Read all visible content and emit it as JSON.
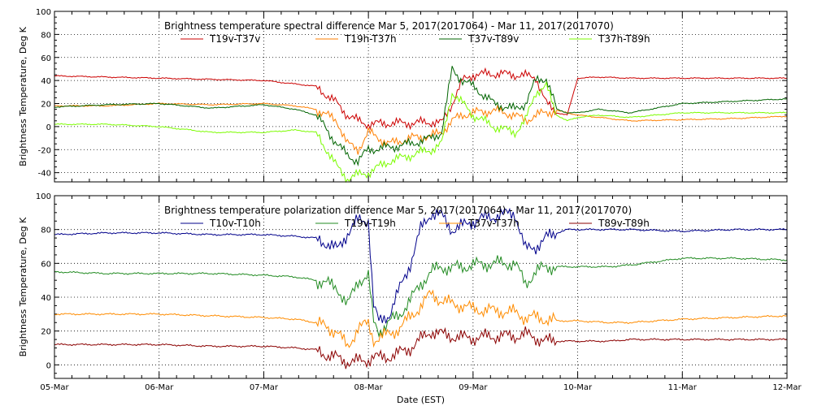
{
  "colors": {
    "background": "#ffffff",
    "axis": "#000000"
  },
  "chart_data": [
    {
      "type": "line",
      "title": "Brightness temperature spectral difference      Mar  5, 2017(2017064) - Mar 11, 2017(2017070)",
      "ylabel": "Brightness Temperature, Deg K",
      "xlabel": "",
      "ylim": [
        -48,
        100
      ],
      "yticks": [
        -40,
        -20,
        0,
        20,
        40,
        60,
        80,
        100
      ],
      "xlim": [
        0,
        7
      ],
      "xticks": [
        0,
        1,
        2,
        3,
        4,
        5,
        6,
        7
      ],
      "xticklabels": [],
      "grid": true,
      "legend_position": "top",
      "x": [
        0,
        0.5,
        1,
        1.5,
        2,
        2.3,
        2.5,
        2.7,
        2.8,
        2.9,
        3.0,
        3.2,
        3.4,
        3.6,
        3.7,
        3.8,
        3.9,
        4.0,
        4.2,
        4.4,
        4.5,
        4.6,
        4.7,
        4.8,
        4.9,
        5.0,
        5.2,
        5.5,
        6,
        6.5,
        7
      ],
      "series": [
        {
          "name": "T19v-T37v",
          "color": "#cc0000",
          "values": [
            44,
            43,
            42,
            41,
            40,
            37,
            35,
            20,
            10,
            5,
            2,
            3,
            3,
            4,
            3,
            20,
            40,
            45,
            46,
            45,
            44,
            43,
            20,
            12,
            10,
            42,
            43,
            42,
            42,
            42,
            42
          ]
        },
        {
          "name": "T19h-T37h",
          "color": "#ff7f00",
          "values": [
            18,
            18,
            20,
            19,
            20,
            18,
            15,
            5,
            -15,
            -20,
            -5,
            -15,
            -10,
            -8,
            -5,
            5,
            10,
            12,
            14,
            10,
            5,
            10,
            12,
            14,
            12,
            10,
            8,
            5,
            6,
            7,
            9
          ]
        },
        {
          "name": "T37v-T89v",
          "color": "#006400",
          "values": [
            17,
            19,
            20,
            16,
            19,
            15,
            10,
            -15,
            -25,
            -30,
            -20,
            -18,
            -15,
            -10,
            -5,
            50,
            40,
            35,
            20,
            15,
            20,
            40,
            42,
            15,
            12,
            12,
            15,
            12,
            20,
            22,
            24
          ]
        },
        {
          "name": "T37h-T89h",
          "color": "#7cfc00",
          "values": [
            2,
            2,
            0,
            -5,
            -5,
            -3,
            -5,
            -35,
            -45,
            -42,
            -40,
            -30,
            -25,
            -20,
            -15,
            30,
            20,
            10,
            0,
            -5,
            5,
            30,
            35,
            10,
            5,
            8,
            10,
            8,
            12,
            12,
            12
          ]
        }
      ]
    },
    {
      "type": "line",
      "title": "Brightness temperature polarization difference      Mar  5, 2017(2017064) - Mar 11, 2017(2017070)",
      "ylabel": "Brightness Temperature, Deg K",
      "xlabel": "Date (EST)",
      "ylim": [
        -8,
        100
      ],
      "yticks": [
        0,
        20,
        40,
        60,
        80,
        100
      ],
      "xlim": [
        0,
        7
      ],
      "xticks": [
        0,
        1,
        2,
        3,
        4,
        5,
        6,
        7
      ],
      "xticklabels": [
        "05-Mar",
        "06-Mar",
        "07-Mar",
        "08-Mar",
        "09-Mar",
        "10-Mar",
        "11-Mar",
        "12-Mar"
      ],
      "grid": true,
      "legend_position": "top",
      "x": [
        0,
        0.5,
        1,
        1.5,
        2,
        2.3,
        2.5,
        2.6,
        2.7,
        2.8,
        2.9,
        3.0,
        3.05,
        3.1,
        3.2,
        3.3,
        3.4,
        3.5,
        3.6,
        3.7,
        3.8,
        3.9,
        4.0,
        4.2,
        4.4,
        4.5,
        4.6,
        4.7,
        4.8,
        4.9,
        5.0,
        5.3,
        5.5,
        6,
        6.5,
        7
      ],
      "series": [
        {
          "name": "T10v-T10h",
          "color": "#00008b",
          "values": [
            77,
            78,
            78,
            77,
            77,
            76,
            75,
            72,
            68,
            78,
            85,
            86,
            35,
            25,
            30,
            45,
            60,
            80,
            90,
            88,
            80,
            82,
            85,
            88,
            90,
            68,
            70,
            75,
            78,
            80,
            80,
            80,
            80,
            79,
            80,
            80
          ]
        },
        {
          "name": "T19v-T19h",
          "color": "#228b22",
          "values": [
            55,
            54,
            54,
            54,
            53,
            52,
            50,
            48,
            46,
            35,
            50,
            52,
            25,
            20,
            25,
            30,
            38,
            48,
            55,
            58,
            57,
            58,
            59,
            60,
            60,
            48,
            55,
            58,
            58,
            58,
            58,
            58,
            59,
            63,
            63,
            62
          ]
        },
        {
          "name": "T37v-T37h",
          "color": "#ff8c00",
          "values": [
            30,
            30,
            30,
            29,
            28,
            27,
            25,
            22,
            20,
            10,
            22,
            24,
            15,
            16,
            18,
            22,
            28,
            35,
            42,
            38,
            36,
            35,
            33,
            32,
            31,
            28,
            28,
            27,
            26,
            26,
            26,
            25,
            25,
            27,
            28,
            29
          ]
        },
        {
          "name": "T89v-T89h",
          "color": "#8b0000",
          "values": [
            12,
            12,
            12,
            11,
            11,
            10,
            9,
            6,
            4,
            2,
            2,
            3,
            5,
            4,
            5,
            7,
            10,
            15,
            20,
            18,
            17,
            16,
            16,
            17,
            17,
            18,
            16,
            14,
            14,
            14,
            14,
            14,
            15,
            15,
            15,
            15
          ]
        }
      ]
    }
  ]
}
